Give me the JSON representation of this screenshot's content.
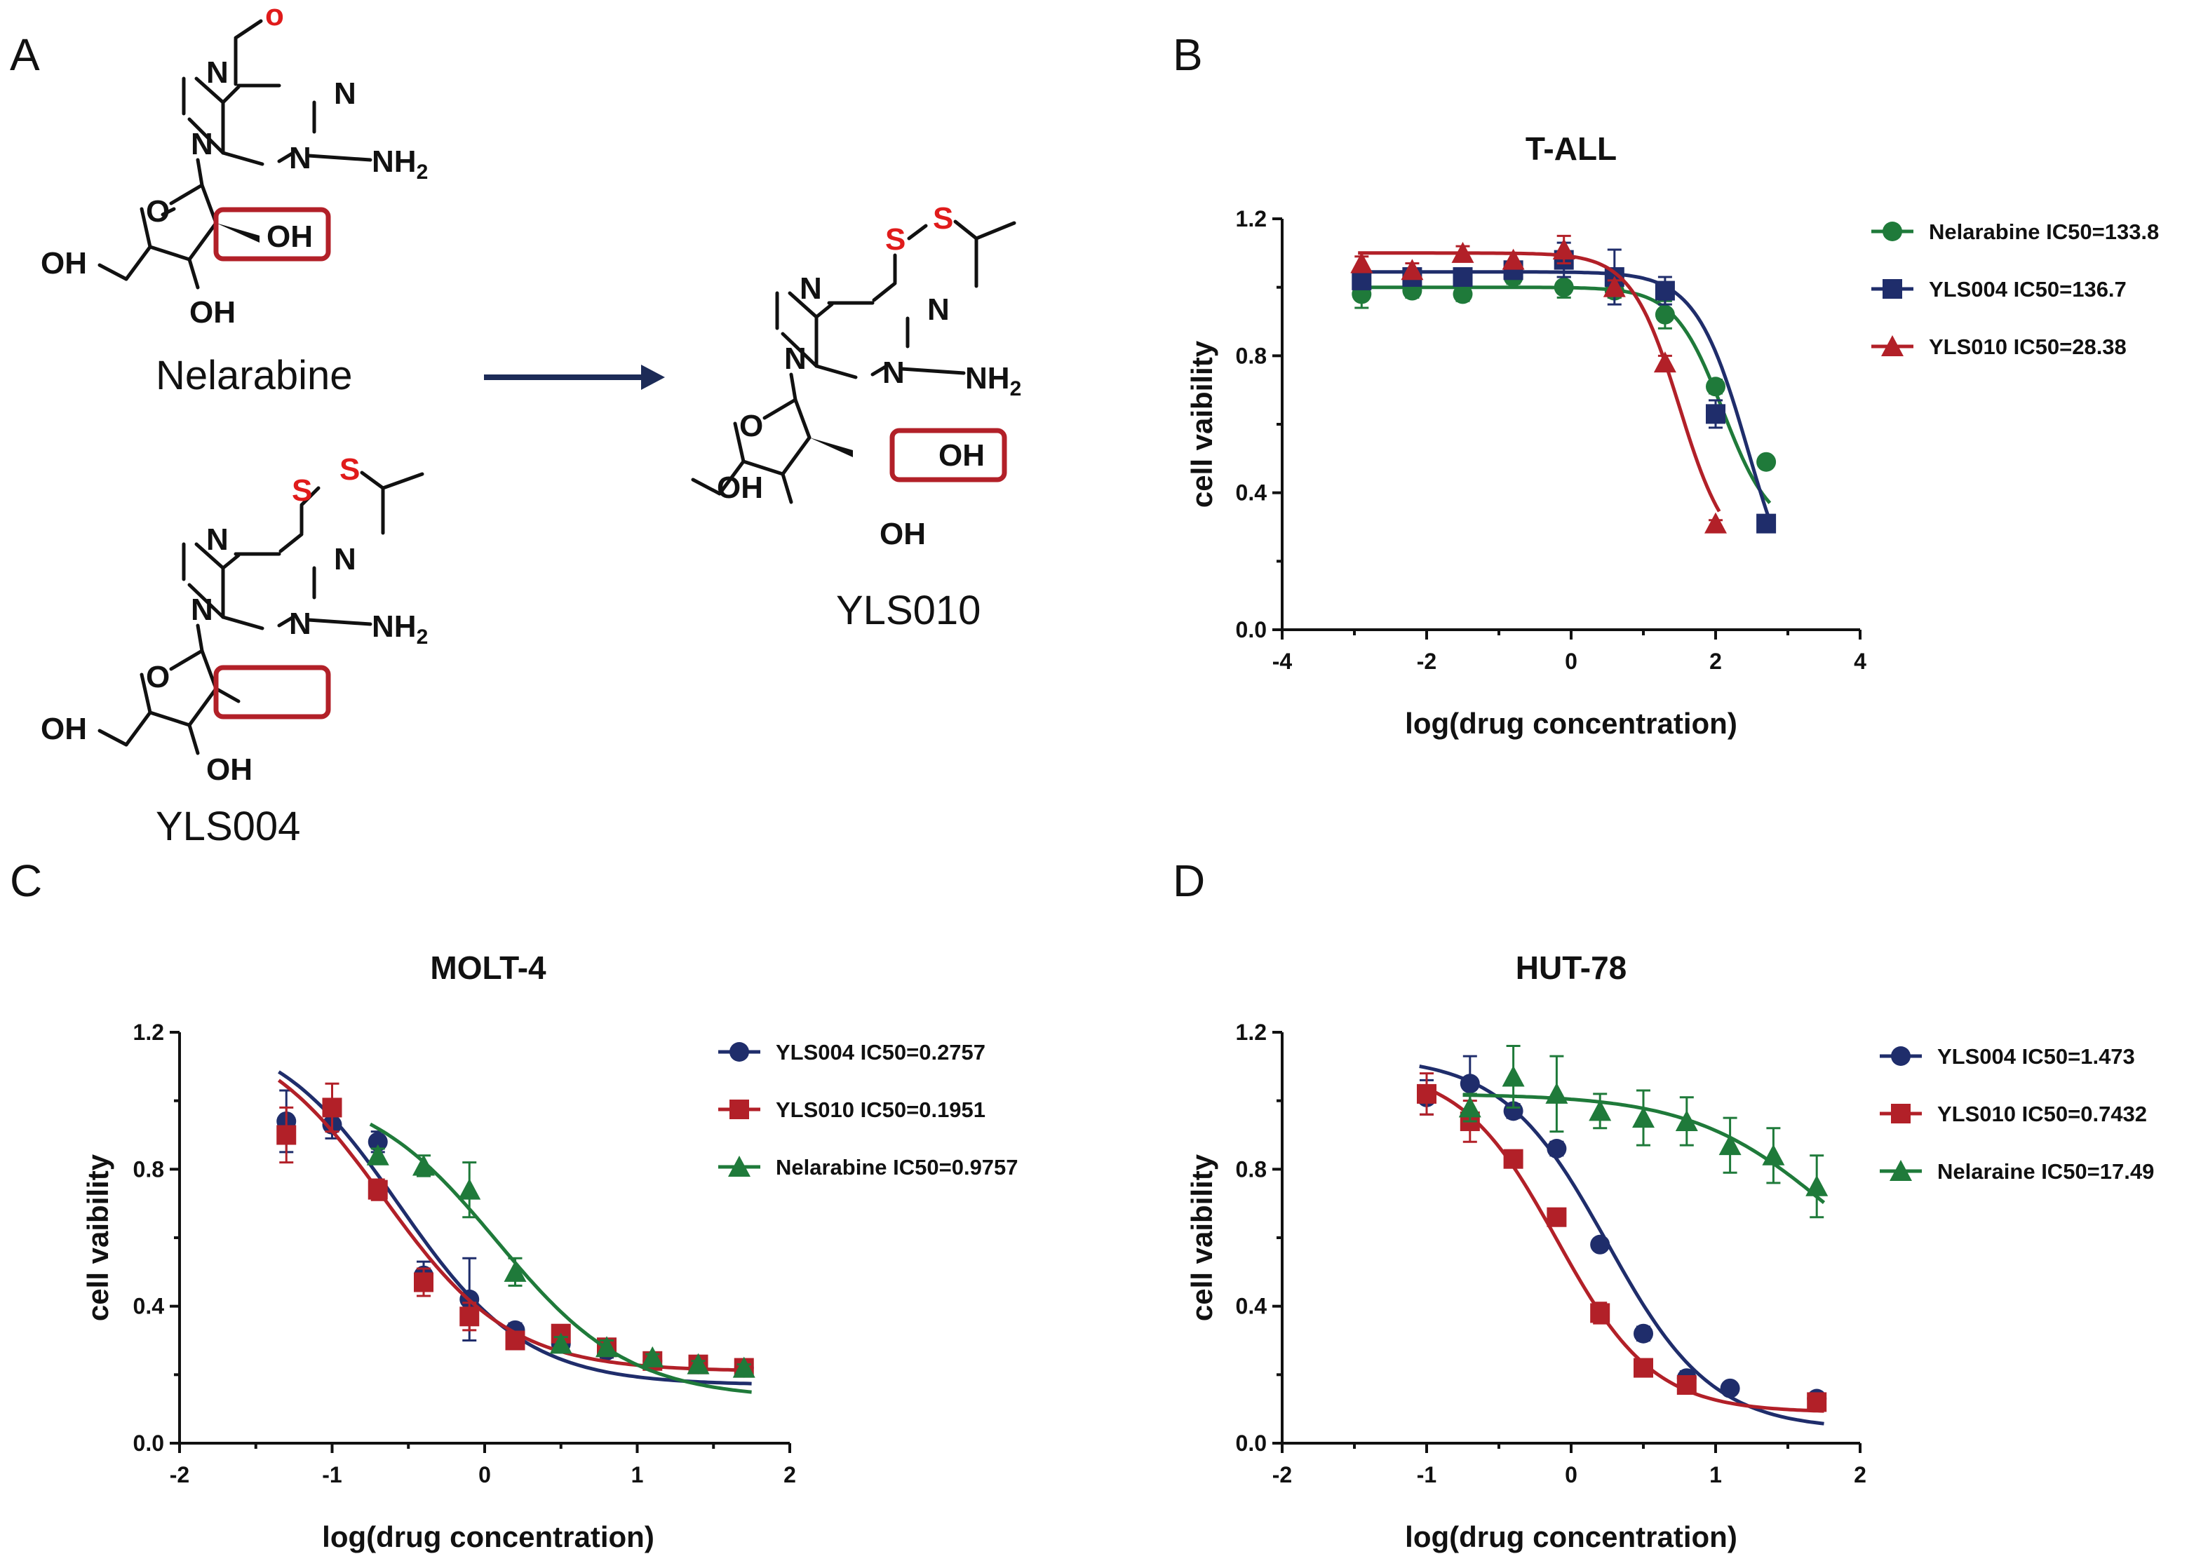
{
  "panels": {
    "a": "A",
    "b": "B",
    "c": "C",
    "d": "D"
  },
  "chemistry": {
    "nelarabine": {
      "name": "Nelarabine",
      "atoms": {
        "o_methoxy": "o",
        "n7": "N",
        "n1": "N",
        "n9": "N",
        "n3": "N",
        "nh2": "NH",
        "nh2_sub": "2",
        "o_ring": "O",
        "oh_2p": "OH",
        "oh_5p": "OH",
        "oh_3p": "OH"
      }
    },
    "yls004": {
      "name": "YLS004",
      "atoms": {
        "s1": "S",
        "s2": "S",
        "n7": "N",
        "n1": "N",
        "n9": "N",
        "n3": "N",
        "nh2": "NH",
        "nh2_sub": "2",
        "o_ring": "O",
        "oh_5p": "OH",
        "oh_3p": "OH"
      }
    },
    "yls010": {
      "name": "YLS010",
      "atoms": {
        "s1": "S",
        "s2": "S",
        "n7": "N",
        "n1": "N",
        "n9": "N",
        "n3": "N",
        "nh2": "NH",
        "nh2_sub": "2",
        "o_ring": "O",
        "oh_2p": "OH",
        "oh_5p": "OH",
        "oh_3p": "OH"
      }
    }
  },
  "colors": {
    "navy": "#1f2d6b",
    "red": "#b22028",
    "green": "#1f7a3a",
    "arrow": "#1c2b57",
    "highlight": "#b22028",
    "heteroatom_red": "#e01b1b"
  },
  "chart_data": [
    {
      "id": "B",
      "type": "scatter",
      "title": "T-ALL",
      "xlabel": "log(drug concentration)",
      "ylabel": "cell vaibility",
      "xlim": [
        -4,
        4
      ],
      "ylim": [
        0,
        1.2
      ],
      "x_ticks": [
        "-4",
        "-2",
        "0",
        "2",
        "4"
      ],
      "y_ticks": [
        "0.0",
        "0.4",
        "0.8",
        "1.2"
      ],
      "legend_position": "top-right",
      "series": [
        {
          "name": "Nelarabine IC50=133.8",
          "color": "#1f7a3a",
          "marker": "circle",
          "x": [
            -2.9,
            -2.2,
            -1.5,
            -0.8,
            -0.1,
            0.6,
            1.3,
            2.0,
            2.7
          ],
          "y": [
            0.98,
            0.99,
            0.98,
            1.03,
            1.0,
            0.99,
            0.92,
            0.71,
            0.49
          ],
          "err": [
            0.04,
            0.02,
            0.02,
            0.02,
            0.03,
            0.02,
            0.04,
            0.02,
            0.01
          ],
          "fit": {
            "top": 1.0,
            "bottom": 0.28,
            "log_ic50": 2.1,
            "hill": 1.3
          }
        },
        {
          "name": "YLS004 IC50=136.7",
          "color": "#1f2d6b",
          "marker": "square",
          "x": [
            -2.9,
            -2.2,
            -1.5,
            -0.8,
            -0.1,
            0.6,
            1.3,
            2.0,
            2.7
          ],
          "y": [
            1.02,
            1.03,
            1.03,
            1.05,
            1.08,
            1.03,
            0.99,
            0.63,
            0.31
          ],
          "err": [
            0.02,
            0.02,
            0.02,
            0.02,
            0.05,
            0.08,
            0.04,
            0.04,
            0.01
          ],
          "fit": {
            "top": 1.045,
            "bottom": 0.0,
            "log_ic50": 2.45,
            "hill": 1.2
          }
        },
        {
          "name": "YLS010 IC50=28.38",
          "color": "#b22028",
          "marker": "triangle",
          "x": [
            -2.9,
            -2.2,
            -1.5,
            -0.8,
            -0.1,
            0.6,
            1.3,
            2.0
          ],
          "y": [
            1.07,
            1.05,
            1.1,
            1.08,
            1.11,
            1.0,
            0.78,
            0.31
          ],
          "err": [
            0.02,
            0.02,
            0.02,
            0.02,
            0.04,
            0.02,
            0.02,
            0.01
          ],
          "fit": {
            "top": 1.1,
            "bottom": 0.2,
            "log_ic50": 1.5,
            "hill": 1.3
          }
        }
      ]
    },
    {
      "id": "C",
      "type": "scatter",
      "title": "MOLT-4",
      "xlabel": "log(drug concentration)",
      "ylabel": "cell vaibility",
      "xlim": [
        -2,
        2
      ],
      "ylim": [
        0,
        1.2
      ],
      "x_ticks": [
        "-2",
        "-1",
        "0",
        "1",
        "2"
      ],
      "y_ticks": [
        "0.0",
        "0.4",
        "0.8",
        "1.2"
      ],
      "legend_position": "top-right",
      "series": [
        {
          "name": "YLS004 IC50=0.2757",
          "color": "#1f2d6b",
          "marker": "circle",
          "x": [
            -1.3,
            -1.0,
            -0.7,
            -0.4,
            -0.1,
            0.2,
            0.5,
            0.8,
            1.1,
            1.4,
            1.7
          ],
          "y": [
            0.94,
            0.93,
            0.88,
            0.49,
            0.42,
            0.33,
            0.29,
            0.27,
            0.24,
            0.23,
            0.22
          ],
          "err": [
            0.09,
            0.04,
            0.03,
            0.04,
            0.12,
            0.02,
            0.02,
            0.02,
            0.01,
            0.01,
            0.01
          ],
          "fit": {
            "top": 1.22,
            "bottom": 0.17,
            "log_ic50": -0.56,
            "hill": 1.05
          }
        },
        {
          "name": "YLS010 IC50=0.1951",
          "color": "#b22028",
          "marker": "square",
          "x": [
            -1.3,
            -1.0,
            -0.7,
            -0.4,
            -0.1,
            0.2,
            0.5,
            0.8,
            1.1,
            1.4,
            1.7
          ],
          "y": [
            0.9,
            0.98,
            0.74,
            0.47,
            0.37,
            0.3,
            0.32,
            0.28,
            0.24,
            0.23,
            0.22
          ],
          "err": [
            0.08,
            0.07,
            0.03,
            0.04,
            0.04,
            0.02,
            0.02,
            0.02,
            0.01,
            0.01,
            0.01
          ],
          "fit": {
            "top": 1.22,
            "bottom": 0.21,
            "log_ic50": -0.66,
            "hill": 1.05
          }
        },
        {
          "name": "Nelarabine IC50=0.9757",
          "color": "#1f7a3a",
          "marker": "triangle",
          "x": [
            -0.7,
            -0.4,
            -0.1,
            0.2,
            0.5,
            0.8,
            1.1,
            1.4,
            1.7
          ],
          "y": [
            0.84,
            0.81,
            0.74,
            0.5,
            0.29,
            0.28,
            0.25,
            0.23,
            0.22
          ],
          "err": [
            0.02,
            0.03,
            0.08,
            0.04,
            0.02,
            0.02,
            0.01,
            0.01,
            0.01
          ],
          "fit": {
            "top": 1.05,
            "bottom": 0.13,
            "log_ic50": 0.08,
            "hill": 1.0
          }
        }
      ]
    },
    {
      "id": "D",
      "type": "scatter",
      "title": "HUT-78",
      "xlabel": "log(drug concentration)",
      "ylabel": "cell vaibility",
      "xlim": [
        -2,
        2
      ],
      "ylim": [
        0,
        1.2
      ],
      "x_ticks": [
        "-2",
        "-1",
        "0",
        "1",
        "2"
      ],
      "y_ticks": [
        "0.0",
        "0.4",
        "0.8",
        "1.2"
      ],
      "legend_position": "top-right",
      "series": [
        {
          "name": "YLS004 IC50=1.473",
          "color": "#1f2d6b",
          "marker": "circle",
          "x": [
            -1.0,
            -0.7,
            -0.4,
            -0.1,
            0.2,
            0.5,
            0.8,
            1.1,
            1.7
          ],
          "y": [
            1.01,
            1.05,
            0.97,
            0.86,
            0.58,
            0.32,
            0.19,
            0.16,
            0.13
          ],
          "err": [
            0.05,
            0.08,
            0.02,
            0.02,
            0.01,
            0.02,
            0.02,
            0.01,
            0.01
          ],
          "fit": {
            "top": 1.13,
            "bottom": 0.04,
            "log_ic50": 0.25,
            "hill": 1.2
          }
        },
        {
          "name": "YLS010 IC50=0.7432",
          "color": "#b22028",
          "marker": "square",
          "x": [
            -1.0,
            -0.7,
            -0.4,
            -0.1,
            0.2,
            0.5,
            0.8,
            1.7
          ],
          "y": [
            1.02,
            0.94,
            0.83,
            0.66,
            0.38,
            0.22,
            0.17,
            0.12
          ],
          "err": [
            0.06,
            0.06,
            0.02,
            0.01,
            0.03,
            0.01,
            0.01,
            0.01
          ],
          "fit": {
            "top": 1.1,
            "bottom": 0.09,
            "log_ic50": -0.1,
            "hill": 1.3
          }
        },
        {
          "name": "Nelaraine IC50=17.49",
          "color": "#1f7a3a",
          "marker": "triangle",
          "x": [
            -0.7,
            -0.4,
            -0.1,
            0.2,
            0.5,
            0.8,
            1.1,
            1.4,
            1.7
          ],
          "y": [
            0.98,
            1.07,
            1.02,
            0.97,
            0.95,
            0.94,
            0.87,
            0.84,
            0.75
          ],
          "err": [
            0.04,
            0.09,
            0.11,
            0.05,
            0.08,
            0.07,
            0.08,
            0.08,
            0.09
          ],
          "fit": {
            "top": 1.02,
            "bottom": 0.35,
            "log_ic50": 1.8,
            "hill": 0.9
          }
        }
      ]
    }
  ]
}
